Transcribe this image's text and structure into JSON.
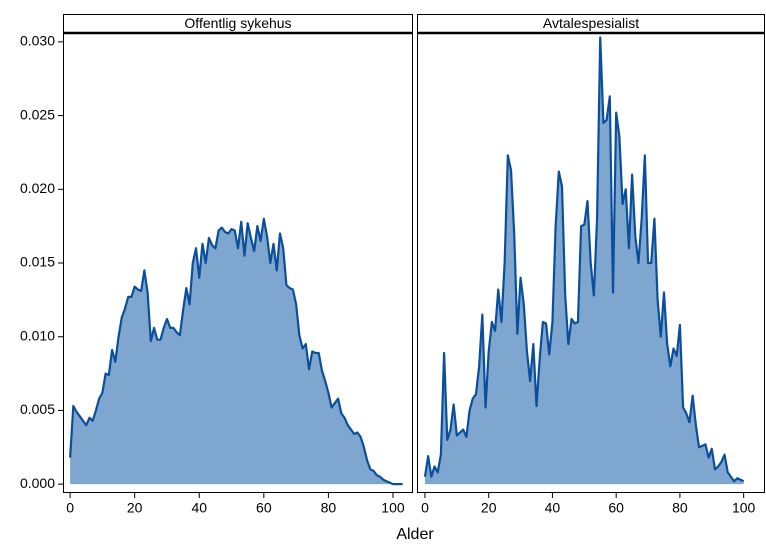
{
  "chart_data": [
    {
      "type": "area",
      "title": "Offentlig sykehus",
      "x_label": "Alder",
      "color": "#0b4f9c",
      "fill": "#7fa6cf",
      "xlim": [
        -2.2,
        106.2
      ],
      "ylim": [
        -0.0006,
        0.0306
      ],
      "xticks": [
        0,
        20,
        40,
        60,
        80,
        100
      ],
      "yticks": [
        {
          "value": 0,
          "label": "0.000"
        },
        {
          "value": 0.005,
          "label": "0.005"
        },
        {
          "value": 0.01,
          "label": "0.010"
        },
        {
          "value": 0.015,
          "label": "0.015"
        },
        {
          "value": 0.02,
          "label": "0.020"
        },
        {
          "value": 0.025,
          "label": "0.025"
        },
        {
          "value": 0.03,
          "label": "0.030"
        }
      ],
      "x": [
        0,
        1,
        2,
        3,
        4,
        5,
        6,
        7,
        8,
        9,
        10,
        11,
        12,
        13,
        14,
        15,
        16,
        17,
        18,
        19,
        20,
        21,
        22,
        23,
        24,
        25,
        26,
        27,
        28,
        29,
        30,
        31,
        32,
        33,
        34,
        35,
        36,
        37,
        38,
        39,
        40,
        41,
        42,
        43,
        44,
        45,
        46,
        47,
        48,
        49,
        50,
        51,
        52,
        53,
        54,
        55,
        56,
        57,
        58,
        59,
        60,
        61,
        62,
        63,
        64,
        65,
        66,
        67,
        68,
        69,
        70,
        71,
        72,
        73,
        74,
        75,
        76,
        77,
        78,
        79,
        80,
        81,
        82,
        83,
        84,
        85,
        86,
        87,
        88,
        89,
        90,
        91,
        92,
        93,
        94,
        95,
        96,
        97,
        98,
        99,
        100,
        101,
        102,
        103
      ],
      "values": [
        0.0018,
        0.0053,
        0.0049,
        0.0046,
        0.0043,
        0.004,
        0.0045,
        0.0043,
        0.005,
        0.0058,
        0.0062,
        0.0075,
        0.0074,
        0.0091,
        0.0083,
        0.01,
        0.0113,
        0.0119,
        0.0127,
        0.0127,
        0.0134,
        0.0132,
        0.0131,
        0.0145,
        0.013,
        0.0097,
        0.0106,
        0.0098,
        0.0098,
        0.0106,
        0.0112,
        0.0106,
        0.0106,
        0.0103,
        0.0101,
        0.0118,
        0.0133,
        0.0122,
        0.015,
        0.016,
        0.014,
        0.0163,
        0.015,
        0.0167,
        0.0162,
        0.016,
        0.0172,
        0.0174,
        0.0171,
        0.017,
        0.0173,
        0.0172,
        0.016,
        0.0178,
        0.0155,
        0.0177,
        0.0167,
        0.0158,
        0.0175,
        0.0165,
        0.018,
        0.0168,
        0.015,
        0.0163,
        0.0145,
        0.017,
        0.016,
        0.0135,
        0.0133,
        0.0132,
        0.0122,
        0.0101,
        0.0092,
        0.0095,
        0.0078,
        0.009,
        0.0089,
        0.0089,
        0.0077,
        0.007,
        0.0062,
        0.0052,
        0.0055,
        0.0058,
        0.0048,
        0.0045,
        0.004,
        0.0037,
        0.0034,
        0.0035,
        0.0032,
        0.0025,
        0.0016,
        0.001,
        0.0009,
        0.0006,
        0.0005,
        0.0003,
        0.0002,
        0.0001,
        0,
        0,
        0,
        0
      ]
    },
    {
      "type": "area",
      "title": "Avtalespesialist",
      "color": "#0b4f9c",
      "fill": "#7fa6cf",
      "xlim": [
        -2.5,
        106.7
      ],
      "ylim": [
        -0.0006,
        0.0306
      ],
      "xticks": [
        0,
        20,
        40,
        60,
        80,
        100
      ],
      "x": [
        0,
        1,
        2,
        3,
        4,
        5,
        6,
        7,
        8,
        9,
        10,
        11,
        12,
        13,
        14,
        15,
        16,
        17,
        18,
        19,
        20,
        21,
        22,
        23,
        24,
        25,
        26,
        27,
        28,
        29,
        30,
        31,
        32,
        33,
        34,
        35,
        36,
        37,
        38,
        39,
        40,
        41,
        42,
        43,
        44,
        45,
        46,
        47,
        48,
        49,
        50,
        51,
        52,
        53,
        54,
        55,
        56,
        57,
        58,
        59,
        60,
        61,
        62,
        63,
        64,
        65,
        66,
        67,
        68,
        69,
        70,
        71,
        72,
        73,
        74,
        75,
        76,
        77,
        78,
        79,
        80,
        81,
        82,
        83,
        84,
        85,
        86,
        87,
        88,
        89,
        90,
        91,
        92,
        93,
        94,
        95,
        96,
        97,
        98,
        99,
        100
      ],
      "values": [
        0.0005,
        0.0019,
        0.0005,
        0.0012,
        0.0008,
        0.002,
        0.0089,
        0.003,
        0.0037,
        0.0054,
        0.0033,
        0.0035,
        0.0037,
        0.0032,
        0.005,
        0.0058,
        0.0061,
        0.008,
        0.0115,
        0.0052,
        0.009,
        0.011,
        0.0104,
        0.0132,
        0.011,
        0.015,
        0.0223,
        0.0213,
        0.017,
        0.0102,
        0.014,
        0.0122,
        0.009,
        0.007,
        0.0095,
        0.0053,
        0.0085,
        0.011,
        0.0109,
        0.0088,
        0.011,
        0.0175,
        0.0212,
        0.0202,
        0.0128,
        0.0095,
        0.0112,
        0.0109,
        0.011,
        0.0175,
        0.0176,
        0.0192,
        0.015,
        0.0128,
        0.018,
        0.0303,
        0.0245,
        0.0247,
        0.0263,
        0.013,
        0.0252,
        0.0236,
        0.019,
        0.02,
        0.016,
        0.021,
        0.0168,
        0.015,
        0.018,
        0.0223,
        0.015,
        0.015,
        0.018,
        0.0125,
        0.01,
        0.013,
        0.0095,
        0.008,
        0.0092,
        0.0087,
        0.0108,
        0.0052,
        0.0048,
        0.0042,
        0.006,
        0.004,
        0.0025,
        0.0026,
        0.0027,
        0.0018,
        0.0024,
        0.001,
        0.0012,
        0.0015,
        0.002,
        0.0008,
        0.0005,
        0.0002,
        0.0004,
        0.0003,
        0.0002
      ]
    }
  ]
}
